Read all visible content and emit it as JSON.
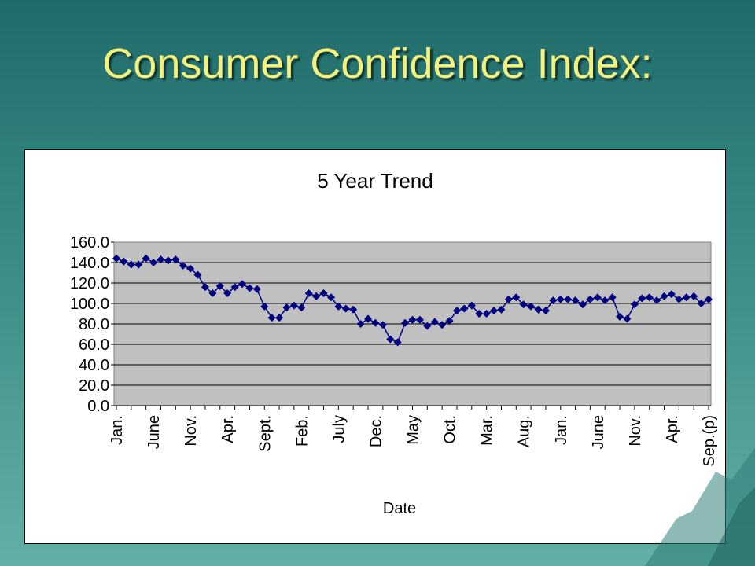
{
  "slide": {
    "title": "Consumer Confidence Index:"
  },
  "colors": {
    "background_top": "#1f6b6a",
    "title": "#f4f07e",
    "plot_area": "#c0c0c0",
    "series": "#000080"
  },
  "chart_data": {
    "type": "line",
    "title": "5 Year Trend",
    "xlabel": "Date",
    "ylabel": "",
    "ylim": [
      0,
      160
    ],
    "yticks": [
      "160.0",
      "140.0",
      "120.0",
      "100.0",
      "80.0",
      "60.0",
      "40.0",
      "20.0",
      "0.0"
    ],
    "y_tick_values": [
      160,
      140,
      120,
      100,
      80,
      60,
      40,
      20,
      0
    ],
    "grid": true,
    "legend": "none",
    "x_tick_labels": [
      {
        "label": "Jan.",
        "index": 0
      },
      {
        "label": "June",
        "index": 5
      },
      {
        "label": "Nov.",
        "index": 10
      },
      {
        "label": "Apr.",
        "index": 15
      },
      {
        "label": "Sept.",
        "index": 20
      },
      {
        "label": "Feb.",
        "index": 25
      },
      {
        "label": "July",
        "index": 30
      },
      {
        "label": "Dec.",
        "index": 35
      },
      {
        "label": "May",
        "index": 40
      },
      {
        "label": "Oct.",
        "index": 45
      },
      {
        "label": "Mar.",
        "index": 50
      },
      {
        "label": "Aug.",
        "index": 55
      },
      {
        "label": "Jan.",
        "index": 60
      },
      {
        "label": "June",
        "index": 65
      },
      {
        "label": "Nov.",
        "index": 70
      },
      {
        "label": "Apr.",
        "index": 75
      },
      {
        "label": "Sep.(p)",
        "index": 80
      }
    ],
    "series": [
      {
        "values": [
          144,
          141,
          138,
          138,
          144,
          140,
          143,
          142,
          143,
          137,
          134,
          128,
          116,
          110,
          117,
          110,
          116,
          119,
          115,
          114,
          97,
          86,
          86,
          96,
          98,
          96,
          110,
          107,
          110,
          106,
          97,
          95,
          94,
          80,
          85,
          81,
          79,
          65,
          62,
          81,
          84,
          84,
          78,
          82,
          79,
          83,
          93,
          95,
          98,
          90,
          90,
          93,
          94,
          104,
          106,
          99,
          97,
          94,
          93,
          103,
          104,
          104,
          103,
          99,
          104,
          106,
          103,
          106,
          87,
          85,
          99,
          105,
          106,
          103,
          107,
          109,
          104,
          106,
          107,
          100,
          104
        ]
      }
    ]
  }
}
